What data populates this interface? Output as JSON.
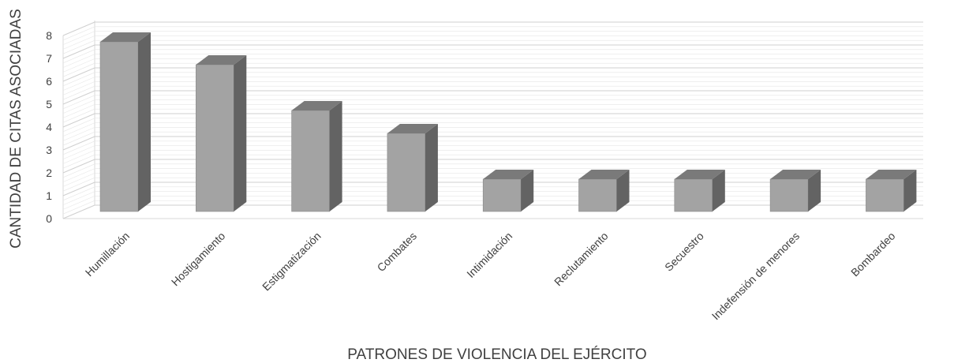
{
  "chart_data": {
    "type": "bar",
    "style": "3d-column",
    "title": "",
    "xlabel": "PATRONES DE VIOLENCIA DEL EJÉRCITO",
    "ylabel": "CANTIDAD DE CITAS ASOCIADAS",
    "ylim": [
      0,
      8
    ],
    "yticks": [
      0,
      1,
      2,
      3,
      4,
      5,
      6,
      7,
      8
    ],
    "grid": true,
    "legend": "none",
    "categories": [
      "Humillación",
      "Hostigamiento",
      "Estigmatización",
      "Combates",
      "Intimidación",
      "Reclutamiento",
      "Secuestro",
      "Indefensión de menores",
      "Bombardeo"
    ],
    "values": [
      8,
      7,
      5,
      4,
      2,
      2,
      2,
      2,
      2
    ],
    "colors": {
      "front": "#a3a3a3",
      "side": "#636363",
      "top": "#7a7a7a",
      "grid": "#d9d9d9",
      "text": "#404040"
    }
  }
}
